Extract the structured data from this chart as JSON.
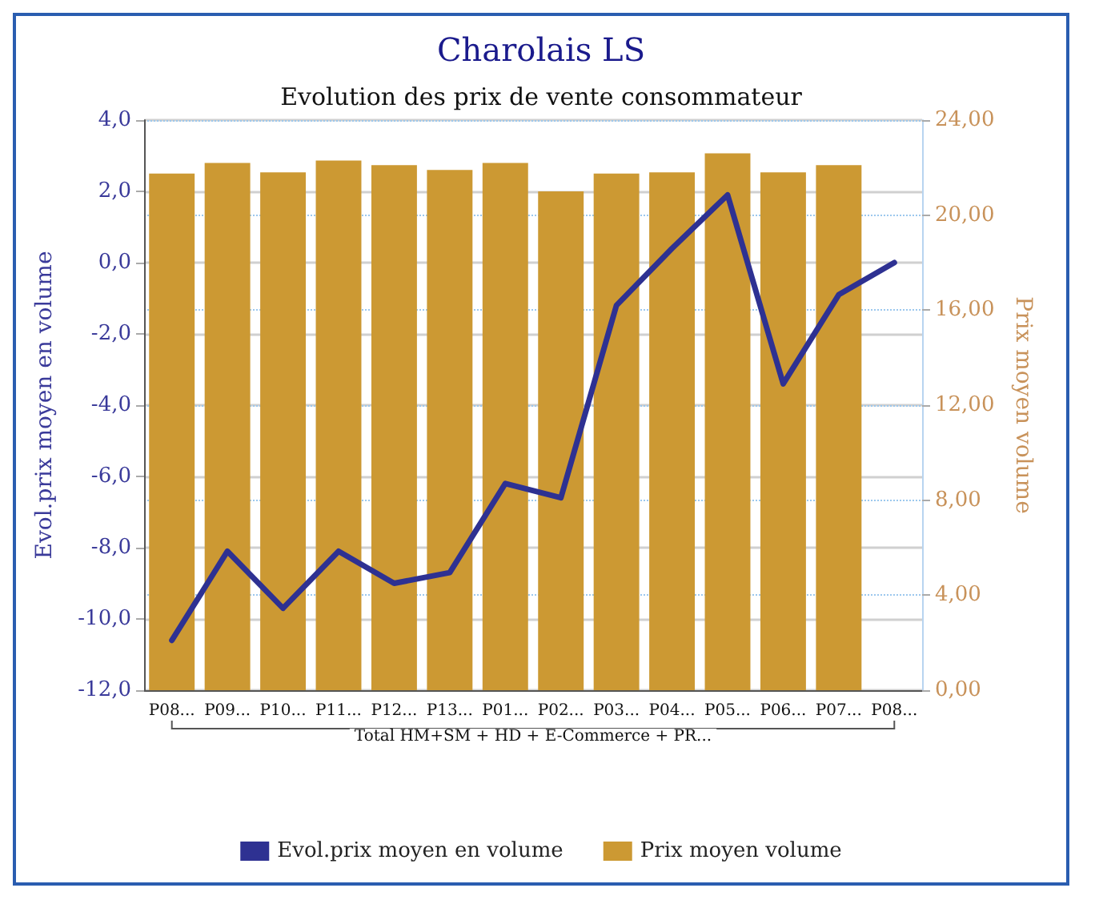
{
  "chart_data": {
    "type": "bar",
    "title": "Charolais LS",
    "subtitle": "Evolution des prix de vente consommateur",
    "xlabel": "Total HM+SM + HD + E-Commerce + PR...",
    "ylabel": "Evol.prix moyen en volume",
    "y2label": "Prix moyen volume",
    "categories": [
      "P08...",
      "P09...",
      "P10...",
      "P11...",
      "P12...",
      "P13...",
      "P01...",
      "P02...",
      "P03...",
      "P04...",
      "P05...",
      "P06...",
      "P07...",
      "P08..."
    ],
    "series": [
      {
        "name": "Evol.prix moyen en volume",
        "type": "line",
        "color": "#2e3192",
        "values": [
          -10.6,
          -8.1,
          -9.7,
          -8.1,
          -9.0,
          -8.7,
          -6.2,
          -6.6,
          -1.2,
          0.4,
          1.9,
          -3.4,
          -0.9,
          0.0
        ]
      },
      {
        "name": "Prix moyen volume",
        "axis": "y2",
        "color": "#cc9933",
        "values": [
          21.75,
          22.2,
          21.8,
          22.3,
          22.1,
          21.9,
          22.2,
          21.0,
          21.75,
          21.8,
          22.6,
          21.8,
          22.1,
          0
        ]
      }
    ],
    "ylim": [
      -12,
      4
    ],
    "yticks": [
      {
        "value": -12,
        "label": "-12,0"
      },
      {
        "value": -10,
        "label": "-10,0"
      },
      {
        "value": -8,
        "label": "-8,0"
      },
      {
        "value": -6,
        "label": "-6,0"
      },
      {
        "value": -4,
        "label": "-4,0"
      },
      {
        "value": -2,
        "label": "-2,0"
      },
      {
        "value": 0,
        "label": "0,0"
      },
      {
        "value": 2,
        "label": "2,0"
      },
      {
        "value": 4,
        "label": "4,0"
      }
    ],
    "y2lim": [
      0,
      24
    ],
    "y2ticks": [
      {
        "value": 0,
        "label": "0,00"
      },
      {
        "value": 4,
        "label": "4,00"
      },
      {
        "value": 8,
        "label": "8,00"
      },
      {
        "value": 12,
        "label": "12,00"
      },
      {
        "value": 16,
        "label": "16,00"
      },
      {
        "value": 20,
        "label": "20,00"
      },
      {
        "value": 24,
        "label": "24,00"
      }
    ],
    "grid": true,
    "legend": "bottom",
    "marker": "none",
    "line_style": "solid"
  }
}
